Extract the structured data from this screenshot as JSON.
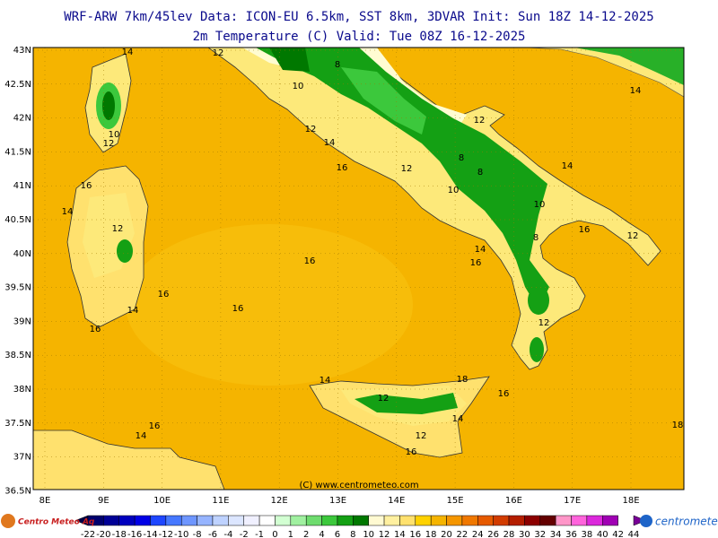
{
  "header": {
    "title": "WRF-ARW 7km/45lev   Data: ICON-EU 6.5km, SST 8km, 3DVAR   Init: Sun 18Z 14-12-2025",
    "subtitle": "2m Temperature (C)  Valid: Tue 08Z 16-12-2025"
  },
  "map": {
    "lat_labels": [
      "43N",
      "42.5N",
      "42N",
      "41.5N",
      "41N",
      "40.5N",
      "40N",
      "39.5N",
      "39N",
      "38.5N",
      "38N",
      "37.5N",
      "37N",
      "36.5N"
    ],
    "lon_labels": [
      "8E",
      "9E",
      "10E",
      "11E",
      "12E",
      "13E",
      "14E",
      "15E",
      "16E",
      "17E",
      "18E"
    ],
    "contour_labels": [
      "14",
      "12",
      "8",
      "10",
      "12",
      "14",
      "12",
      "8",
      "8",
      "12",
      "16",
      "10",
      "14",
      "14",
      "10",
      "8",
      "16",
      "12",
      "14",
      "16",
      "16",
      "10",
      "12",
      "16",
      "14",
      "12",
      "16",
      "14",
      "16",
      "16",
      "12",
      "14",
      "18",
      "12",
      "16",
      "14",
      "12",
      "16",
      "14",
      "16",
      "18"
    ],
    "credit": "(C) www.centrometeo.com"
  },
  "colorbar": {
    "labels": [
      -22,
      -20,
      -18,
      -16,
      -14,
      -12,
      -10,
      -8,
      -6,
      -4,
      -2,
      -1,
      0,
      1,
      2,
      4,
      6,
      8,
      10,
      12,
      14,
      16,
      18,
      20,
      22,
      24,
      26,
      28,
      30,
      32,
      34,
      36,
      38,
      40,
      42,
      44
    ],
    "colors": [
      "#000046",
      "#00006e",
      "#000096",
      "#0000be",
      "#0000e6",
      "#1e46ff",
      "#4678ff",
      "#6e96ff",
      "#96b4ff",
      "#bed2ff",
      "#dce6ff",
      "#f0f0ff",
      "#ffffff",
      "#d2ffd2",
      "#a0f0a0",
      "#6edc6e",
      "#3cc83c",
      "#14a014",
      "#007800",
      "#fffad2",
      "#fff0a0",
      "#ffe16e",
      "#ffd200",
      "#f5b400",
      "#f59600",
      "#f07800",
      "#e65a00",
      "#d23c00",
      "#b41e00",
      "#8c0000",
      "#640000",
      "#ff96c8",
      "#ff64dc",
      "#dc28dc",
      "#a000b4",
      "#780096"
    ]
  },
  "logos": {
    "left": "Centro Meteo Aq",
    "right": "centrometeo"
  }
}
